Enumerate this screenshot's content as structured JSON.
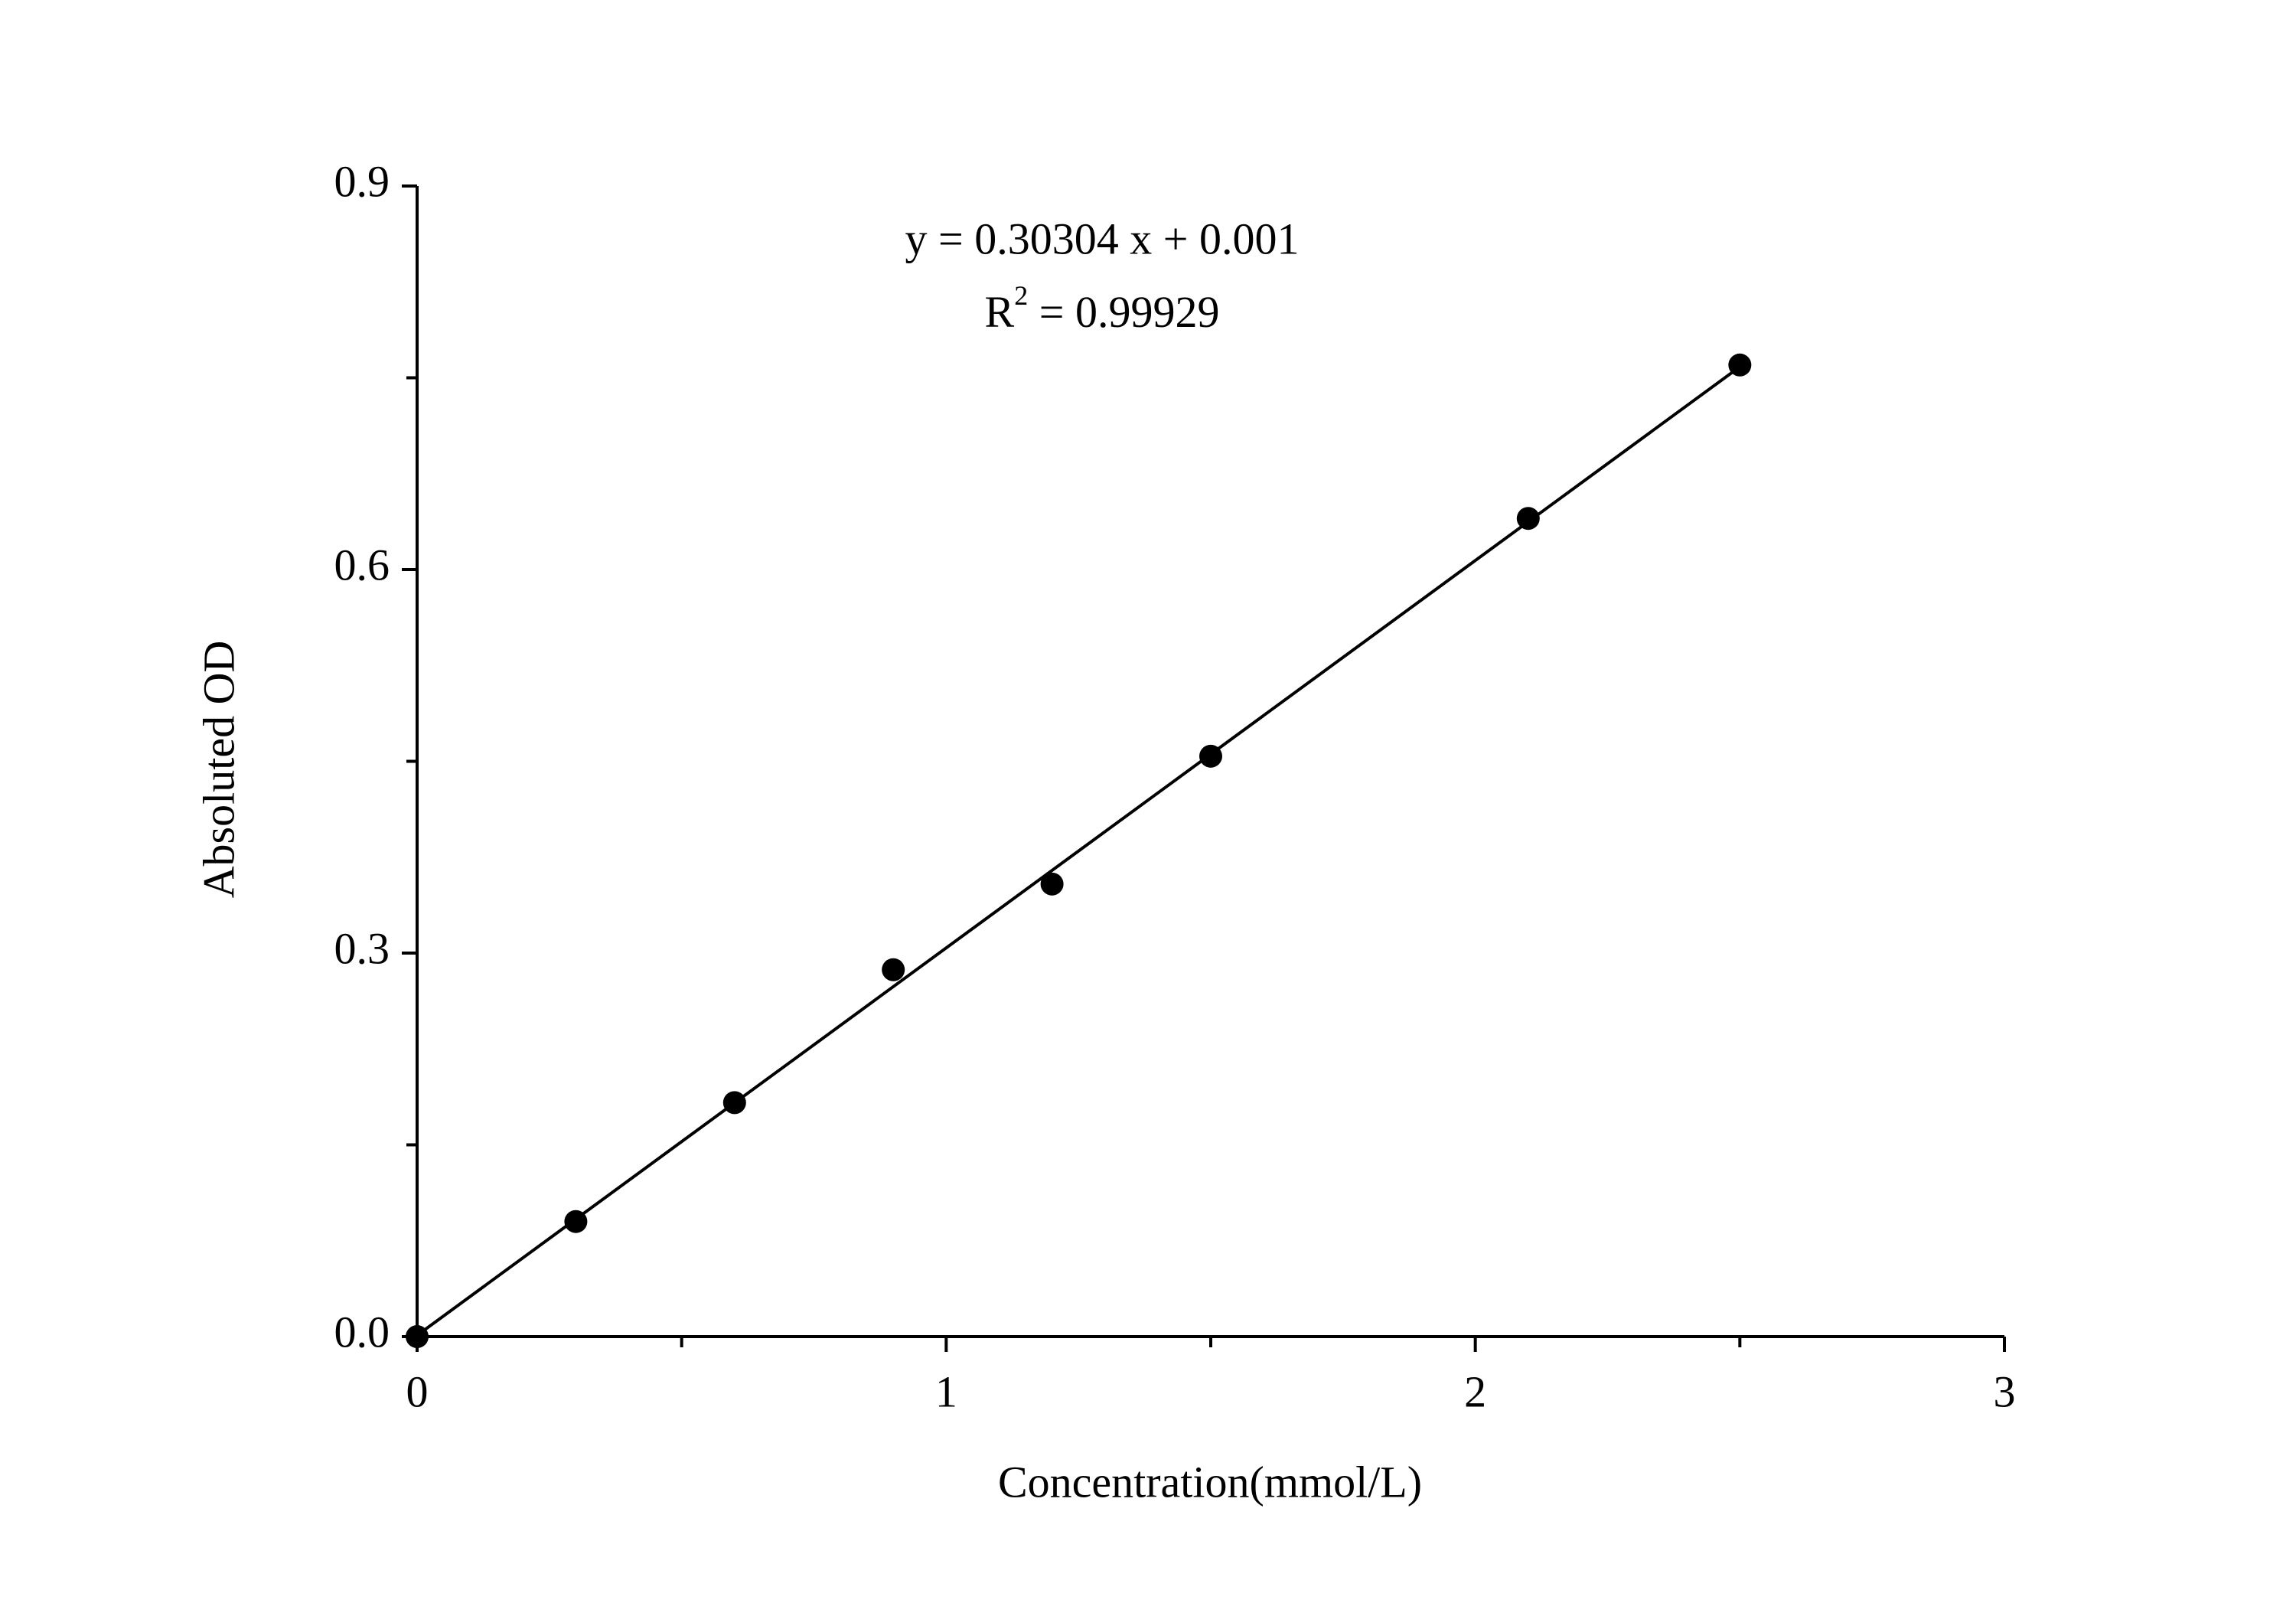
{
  "chart_data": {
    "type": "scatter",
    "x_label": "Concentration(mmol/L)",
    "y_label": "Absoluted OD",
    "x": [
      0,
      0.3,
      0.6,
      0.9,
      1.2,
      1.5,
      2.1,
      2.5
    ],
    "values": [
      0,
      0.09,
      0.183,
      0.287,
      0.354,
      0.454,
      0.64,
      0.76
    ],
    "color": "#000000",
    "xlim": [
      0,
      3
    ],
    "xticks": [
      0,
      1,
      2,
      3
    ],
    "x_minor_ticks": [
      0.5,
      1.5,
      2.5
    ],
    "ylim": [
      0,
      0.9
    ],
    "yticks": [
      {
        "value": 0,
        "label": "0.0"
      },
      0.3,
      0.6,
      0.9
    ],
    "y_minor_ticks": [
      0.15,
      0.45,
      0.75
    ],
    "fit_line": {
      "slope": 0.30304,
      "intercept": 0.001,
      "x": [
        0,
        2.5
      ]
    },
    "equation": "y = 0.30304 x + 0.001",
    "r_squared": {
      "symbol": "R",
      "exponent": "2",
      "text": " = 0.99929"
    }
  }
}
